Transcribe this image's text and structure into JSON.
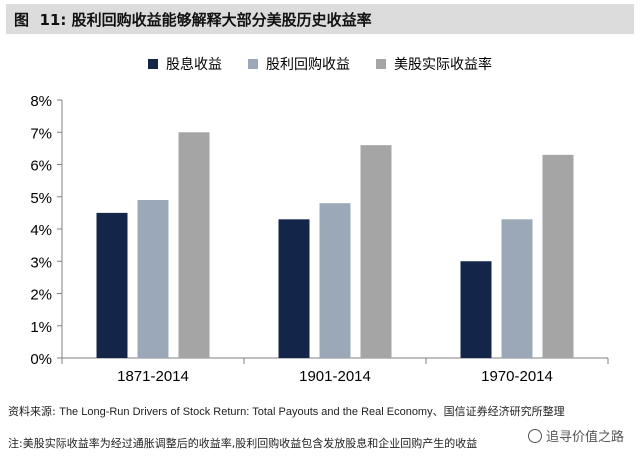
{
  "figure": {
    "label": "图  11:",
    "title": "股利回购收益能够解释大部分美股历史收益率"
  },
  "chart_data": {
    "type": "bar",
    "categories": [
      "1871-2014",
      "1901-2014",
      "1970-2014"
    ],
    "series": [
      {
        "name": "股息收益",
        "values": [
          4.5,
          4.3,
          3.0
        ],
        "color": "#14254a"
      },
      {
        "name": "股利回购收益",
        "values": [
          4.9,
          4.8,
          4.3
        ],
        "color": "#9aa8b8"
      },
      {
        "name": "美股实际收益率",
        "values": [
          7.0,
          6.6,
          6.3
        ],
        "color": "#a5a5a5"
      }
    ],
    "ylim": [
      0,
      8
    ],
    "yticks": [
      "0%",
      "1%",
      "2%",
      "3%",
      "4%",
      "5%",
      "6%",
      "7%",
      "8%"
    ],
    "grid": false,
    "legend_position": "top-center"
  },
  "footer": {
    "source_prefix": "资料来源:",
    "source_text": "The Long-Run Drivers of Stock Return: Total Payouts and the Real Economy、国信证券经济研究所整理",
    "note": "注:美股实际收益率为经过通胀调整后的收益率,股利回购收益包含发放股息和企业回购产生的收益"
  },
  "watermark": {
    "text": "追寻价值之路"
  }
}
